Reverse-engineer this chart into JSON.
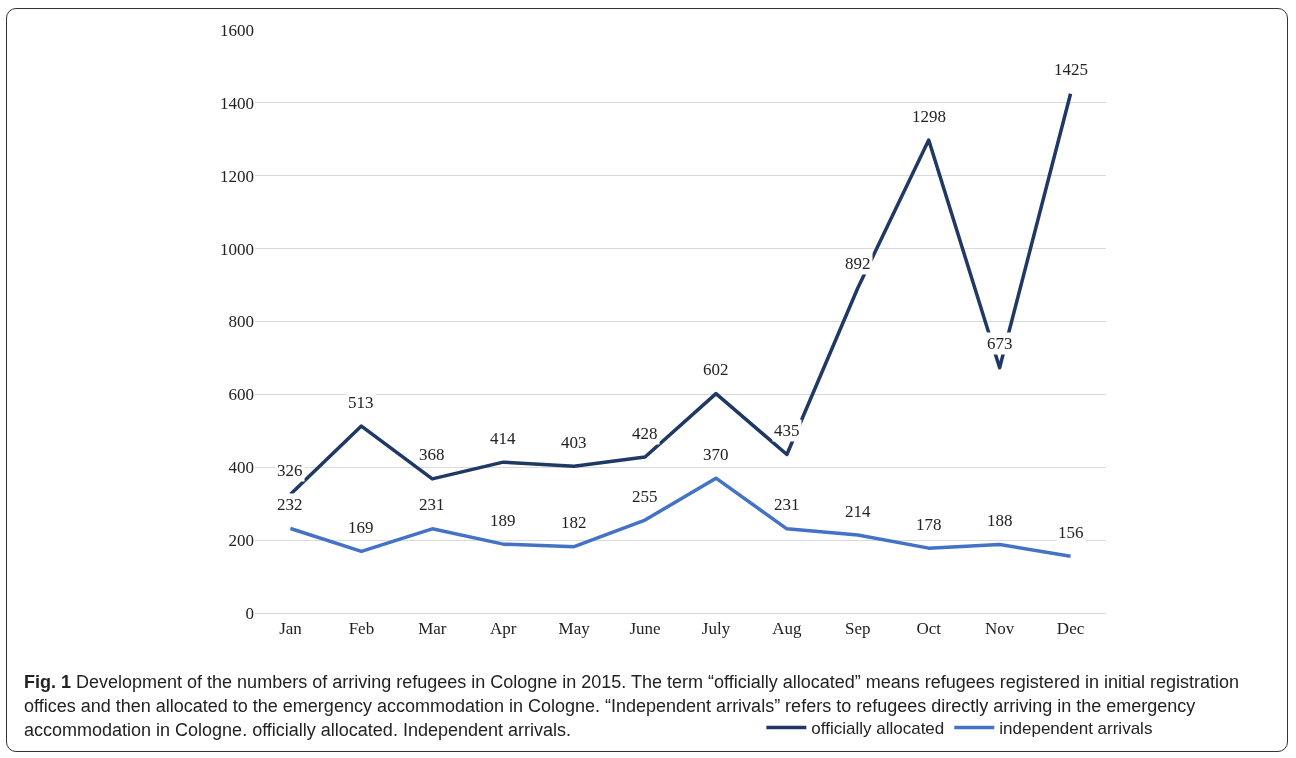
{
  "chart_data": {
    "type": "line",
    "categories": [
      "Jan",
      "Feb",
      "Mar",
      "Apr",
      "May",
      "June",
      "July",
      "Aug",
      "Sep",
      "Oct",
      "Nov",
      "Dec"
    ],
    "series": [
      {
        "name": "officially allocated",
        "color": "#203864",
        "values": [
          326,
          513,
          368,
          414,
          403,
          428,
          602,
          435,
          892,
          1298,
          673,
          1425
        ]
      },
      {
        "name": "independent arrivals",
        "color": "#4472c4",
        "values": [
          232,
          169,
          231,
          189,
          182,
          255,
          370,
          231,
          214,
          178,
          188,
          156
        ]
      }
    ],
    "ylim": [
      0,
      1600
    ],
    "yticks": [
      0,
      200,
      400,
      600,
      800,
      1000,
      1200,
      1400,
      1600
    ],
    "grid": "y",
    "legend": "bottom",
    "marker": "none",
    "line_style": "solid",
    "data_labels": true,
    "annotations": [
      "Fig. 1",
      "Development of the numbers of arriving refugees in Cologne in 2015. The term “officially allocated” means refugees registered in initial registration offices and then allocated to the emergency accommodation in Cologne. “Independent arrivals” refers to refugees directly arriving in the emergency accommodation in Cologne. officially allocated. Independent arrivals."
    ]
  }
}
